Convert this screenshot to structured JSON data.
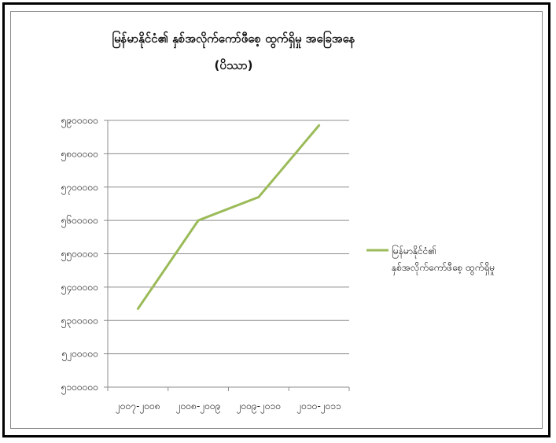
{
  "chart_data": {
    "type": "line",
    "title": "မြန်မာနိုင်ငံ၏ နှစ်အလိုက်ကော်ဖီစေ့ ထွက်ရှိမှု အခြေအနေ",
    "subtitle": "(ပိဿာ)",
    "xlabel": "",
    "ylabel": "",
    "categories": [
      "၂၀၀၇-၂၀၀၈",
      "၂၀၀၈-၂၀၀၉",
      "၂၀၀၉-၂၀၁၀",
      "၂၀၁၀-၂၀၁၁"
    ],
    "series": [
      {
        "name_line1": "မြန်မာနိုင်ငံ၏",
        "name_line2": "နှစ်အလိုက်ကော်ဖီစေ့ ထွက်ရှိမှု",
        "values": [
          5335000,
          5600000,
          5670000,
          5885000
        ],
        "color": "#9bbb59"
      }
    ],
    "ylim": [
      5100000,
      5900000
    ],
    "ytick_values": [
      5100000,
      5200000,
      5300000,
      5400000,
      5500000,
      5600000,
      5700000,
      5800000,
      5900000
    ],
    "ytick_labels": [
      "၅၁၀၀၀၀၀",
      "၅၂၀၀၀၀၀",
      "၅၃၀၀၀၀၀",
      "၅၄၀၀၀၀၀",
      "၅၅၀၀၀၀၀",
      "၅၆၀၀၀၀၀",
      "၅၇၀၀၀၀၀",
      "၅၈၀၀၀၀၀",
      "၅၉၀၀၀၀၀"
    ],
    "grid": true,
    "legend_position": "right",
    "gridline_color": "#8c8c8c",
    "axis_color": "#8c8c8c"
  }
}
